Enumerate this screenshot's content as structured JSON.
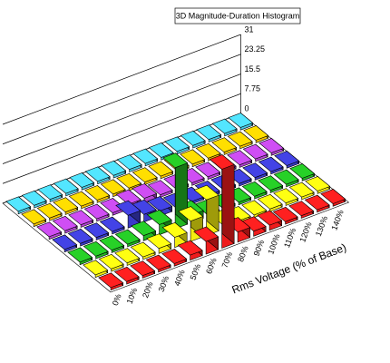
{
  "chart_data": {
    "type": "bar3d",
    "title": "3D Magnitude-Duration Histogram",
    "xlabel": "Rms Voltage (% of Base)",
    "categories": [
      "0%",
      "10%",
      "20%",
      "30%",
      "40%",
      "50%",
      "60%",
      "70%",
      "80%",
      "90%",
      "100%",
      "110%",
      "120%",
      "130%",
      "140%"
    ],
    "zlim": [
      0,
      31
    ],
    "zticks": [
      0,
      7.75,
      15.5,
      23.25,
      31
    ],
    "series": [
      {
        "color": "#ee1c1c",
        "values": [
          1,
          1,
          1,
          1,
          1,
          2,
          5,
          31,
          4,
          2,
          2,
          1,
          1,
          1,
          1
        ]
      },
      {
        "color": "#f5ee10",
        "values": [
          1,
          1,
          1,
          1,
          2,
          4,
          8,
          14,
          2,
          1,
          1,
          1,
          1,
          1,
          1
        ]
      },
      {
        "color": "#22b622",
        "values": [
          1,
          1,
          1,
          1,
          2,
          4,
          24,
          3,
          1,
          1,
          1,
          1,
          1,
          1,
          1
        ]
      },
      {
        "color": "#3a3ac8",
        "values": [
          1,
          1,
          1,
          1,
          5,
          3,
          2,
          1,
          1,
          1,
          1,
          1,
          1,
          1,
          1
        ]
      },
      {
        "color": "#b444d4",
        "values": [
          1,
          1,
          1,
          1,
          1,
          2,
          2,
          1,
          1,
          1,
          1,
          1,
          1,
          1,
          1
        ]
      },
      {
        "color": "#f2c200",
        "values": [
          1,
          1,
          1,
          1,
          1,
          1,
          1,
          1,
          1,
          1,
          1,
          1,
          1,
          1,
          1
        ]
      },
      {
        "color": "#48c8e2",
        "values": [
          1,
          1,
          1,
          1,
          1,
          1,
          1,
          1,
          1,
          1,
          1,
          1,
          1,
          1,
          1
        ]
      }
    ]
  }
}
